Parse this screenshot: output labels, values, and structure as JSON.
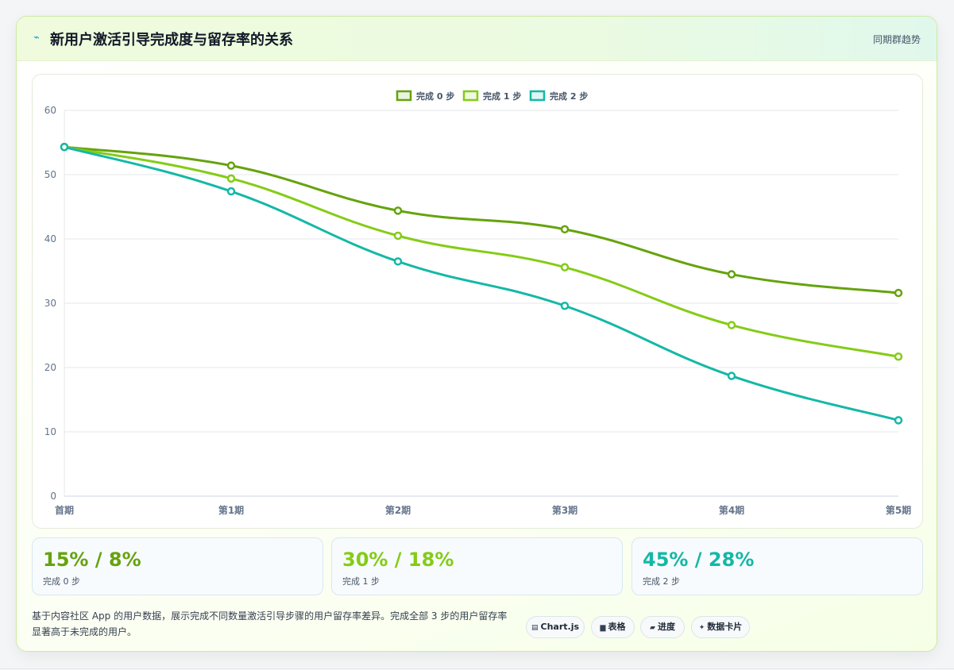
{
  "header": {
    "icon": "trend-icon",
    "icon_glyph": "⌁",
    "title": "新用户激活引导完成度与留存率的关系",
    "badge": "同期群趋势"
  },
  "chart_data": {
    "type": "line",
    "categories": [
      "首期",
      "第1期",
      "第2期",
      "第3期",
      "第4期",
      "第5期"
    ],
    "ylim": [
      0,
      60
    ],
    "yticks": [
      0,
      10,
      20,
      30,
      40,
      50,
      60
    ],
    "grid": true,
    "legend_position": "top",
    "series": [
      {
        "name": "完成 0 步",
        "color": "#65a30d",
        "values": [
          54.3,
          51.4,
          44.4,
          41.5,
          34.5,
          31.6
        ]
      },
      {
        "name": "完成 1 步",
        "color": "#84cc16",
        "values": [
          54.3,
          49.4,
          40.5,
          35.6,
          26.6,
          21.7
        ]
      },
      {
        "name": "完成 2 步",
        "color": "#14b8a6",
        "values": [
          54.3,
          47.4,
          36.5,
          29.6,
          18.7,
          11.8
        ]
      }
    ]
  },
  "stats": [
    {
      "value": "15% / 8%",
      "label": "完成 0 步",
      "color": "#65a30d"
    },
    {
      "value": "30% / 18%",
      "label": "完成 1 步",
      "color": "#84cc16"
    },
    {
      "value": "45% / 28%",
      "label": "完成 2 步",
      "color": "#14b8a6"
    }
  ],
  "description": "基于内容社区 App 的用户数据，展示完成不同数量激活引导步骤的用户留存率差异。完成全部 3 步的用户留存率显著高于未完成的用户。",
  "tags": [
    {
      "icon": "chart-icon",
      "glyph": "▤",
      "label": "Chart.js"
    },
    {
      "icon": "table-icon",
      "glyph": "▆",
      "label": "表格"
    },
    {
      "icon": "progress-icon",
      "glyph": "▰",
      "label": "进度"
    },
    {
      "icon": "sparkle-icon",
      "glyph": "✦",
      "label": "数据卡片"
    }
  ]
}
